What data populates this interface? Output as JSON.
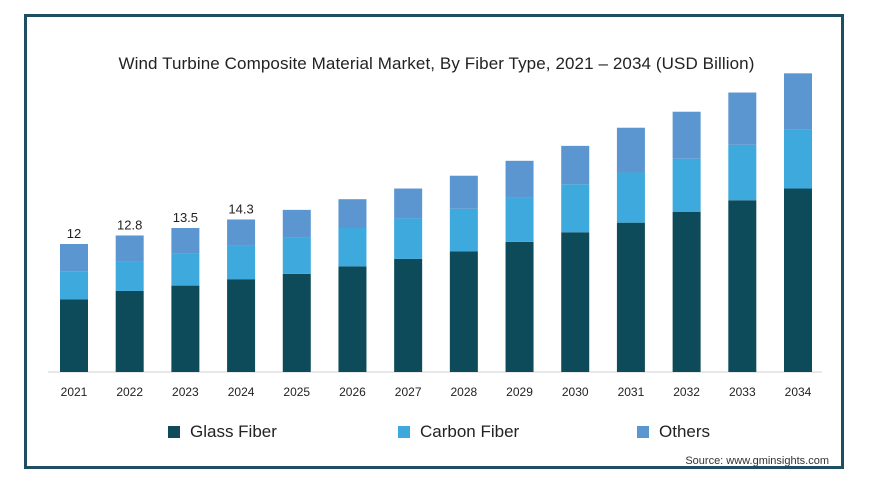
{
  "colors": {
    "glass": "#0d4a5a",
    "carbon": "#3da9dc",
    "others": "#5b96d0",
    "border": "#1f4e63"
  },
  "chart_data": {
    "type": "bar",
    "stacked": true,
    "title": "Wind Turbine Composite Material Market, By Fiber Type, 2021 – 2034 (USD Billion)",
    "categories": [
      "2021",
      "2022",
      "2023",
      "2024",
      "2025",
      "2026",
      "2027",
      "2028",
      "2029",
      "2030",
      "2031",
      "2032",
      "2033",
      "2034"
    ],
    "series": [
      {
        "name": "Glass Fiber",
        "color": "#0d4a5a",
        "values": [
          6.8,
          7.6,
          8.1,
          8.7,
          9.2,
          9.9,
          10.6,
          11.3,
          12.2,
          13.1,
          14.0,
          15.0,
          16.1,
          17.2
        ]
      },
      {
        "name": "Carbon Fiber",
        "color": "#3da9dc",
        "values": [
          2.6,
          2.8,
          3.0,
          3.2,
          3.4,
          3.6,
          3.8,
          4.0,
          4.2,
          4.5,
          4.7,
          5.0,
          5.2,
          5.5
        ]
      },
      {
        "name": "Others",
        "color": "#5b96d0",
        "values": [
          2.6,
          2.4,
          2.4,
          2.4,
          2.6,
          2.7,
          2.8,
          3.1,
          3.4,
          3.6,
          4.2,
          4.4,
          4.9,
          5.3
        ]
      }
    ],
    "data_labels": [
      "12",
      "12.8",
      "13.5",
      "14.3",
      "",
      "",
      "",
      "",
      "",
      "",
      "",
      "",
      "",
      ""
    ],
    "ylim": [
      0,
      30
    ],
    "grid": false,
    "legend_position": "bottom"
  },
  "legend": {
    "items": [
      {
        "label": "Glass Fiber",
        "color": "#0d4a5a"
      },
      {
        "label": "Carbon Fiber",
        "color": "#3da9dc"
      },
      {
        "label": "Others",
        "color": "#5b96d0"
      }
    ]
  },
  "source": "Source: www.gminsights.com"
}
